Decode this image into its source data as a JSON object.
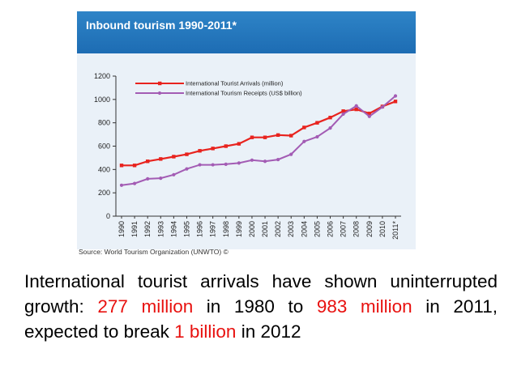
{
  "chart_data": {
    "type": "line",
    "title": "Inbound tourism 1990-2011*",
    "categories": [
      "1990",
      "1991",
      "1992",
      "1993",
      "1994",
      "1995",
      "1996",
      "1997",
      "1998",
      "1999",
      "2000",
      "2001",
      "2002",
      "2003",
      "2004",
      "2005",
      "2006",
      "2007",
      "2008",
      "2009",
      "2010",
      "2011*"
    ],
    "series": [
      {
        "name": "International Tourist Arrivals (million)",
        "color": "#e8231e",
        "values": [
          435,
          435,
          470,
          490,
          510,
          530,
          560,
          580,
          600,
          620,
          675,
          675,
          695,
          690,
          760,
          800,
          845,
          900,
          915,
          880,
          940,
          983
        ]
      },
      {
        "name": "International Tourism Receipts (US$ billion)",
        "color": "#a35cb4",
        "values": [
          265,
          280,
          320,
          325,
          355,
          405,
          440,
          440,
          445,
          455,
          480,
          470,
          485,
          530,
          640,
          680,
          755,
          875,
          945,
          855,
          935,
          1030
        ]
      }
    ],
    "ylim": [
      0,
      1200
    ],
    "yticks": [
      "0",
      "200",
      "400",
      "600",
      "800",
      "1000",
      "1200"
    ],
    "grid": false,
    "legend_position": "top-center",
    "source": "Source: World Tourism Organization (UNWTO) ©"
  },
  "caption": {
    "p1": "International tourist arrivals have shown uninterrupted growth: ",
    "v1": "277 million",
    "p2": " in 1980 to ",
    "v2": "983 million",
    "p3": " in 2011, expected to break ",
    "v3": "1 billion",
    "p4": " in 2012"
  },
  "colors": {
    "header_blue": "#1d6cb3",
    "highlight_red": "#e8110f",
    "panel_bg": "#eaf1f8"
  }
}
